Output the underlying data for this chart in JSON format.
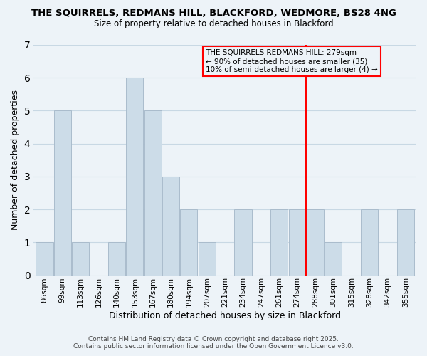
{
  "title1": "THE SQUIRRELS, REDMANS HILL, BLACKFORD, WEDMORE, BS28 4NG",
  "title2": "Size of property relative to detached houses in Blackford",
  "xlabel": "Distribution of detached houses by size in Blackford",
  "ylabel": "Number of detached properties",
  "categories": [
    "86sqm",
    "99sqm",
    "113sqm",
    "126sqm",
    "140sqm",
    "153sqm",
    "167sqm",
    "180sqm",
    "194sqm",
    "207sqm",
    "221sqm",
    "234sqm",
    "247sqm",
    "261sqm",
    "274sqm",
    "288sqm",
    "301sqm",
    "315sqm",
    "328sqm",
    "342sqm",
    "355sqm"
  ],
  "bar_heights": [
    1,
    5,
    1,
    0,
    1,
    6,
    5,
    3,
    2,
    1,
    0,
    2,
    0,
    2,
    2,
    2,
    1,
    0,
    2,
    0,
    2
  ],
  "bar_color": "#ccdce8",
  "bar_edge_color": "#aabccc",
  "grid_color": "#c8d8e4",
  "bg_color": "#edf3f8",
  "red_line_index": 15.0,
  "annotation_text": "THE SQUIRRELS REDMANS HILL: 279sqm\n← 90% of detached houses are smaller (35)\n10% of semi-detached houses are larger (4) →",
  "ylim": [
    0,
    7
  ],
  "yticks": [
    0,
    1,
    2,
    3,
    4,
    5,
    6,
    7
  ],
  "footer1": "Contains HM Land Registry data © Crown copyright and database right 2025.",
  "footer2": "Contains public sector information licensed under the Open Government Licence v3.0."
}
